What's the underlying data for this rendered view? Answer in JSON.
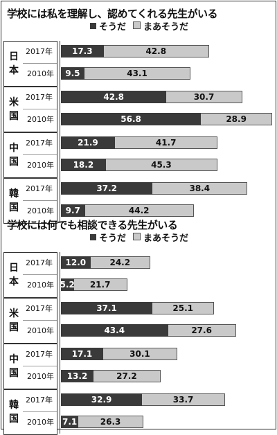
{
  "chart_data": [
    {
      "type": "bar",
      "title": "学校には私を理解し、認めてくれる先生がいる",
      "legend": [
        "そうだ",
        "まあそうだ"
      ],
      "series": [
        {
          "name": "そうだ",
          "color": "#3a3a3a",
          "values": [
            17.3,
            9.5,
            42.8,
            56.8,
            21.9,
            18.2,
            37.2,
            9.7
          ]
        },
        {
          "name": "まあそうだ",
          "color": "#c9c9c9",
          "values": [
            42.8,
            43.1,
            30.7,
            28.9,
            41.7,
            45.3,
            38.4,
            44.2
          ]
        }
      ],
      "groups": [
        {
          "country": "日本",
          "years": [
            "2017年",
            "2010年"
          ]
        },
        {
          "country": "米国",
          "years": [
            "2017年",
            "2010年"
          ]
        },
        {
          "country": "中国",
          "years": [
            "2017年",
            "2010年"
          ]
        },
        {
          "country": "韓国",
          "years": [
            "2017年",
            "2010年"
          ]
        }
      ],
      "stacked": true,
      "orientation": "horizontal",
      "xlim": [
        0,
        100
      ]
    },
    {
      "type": "bar",
      "title": "学校には何でも相談できる先生がいる",
      "legend": [
        "そうだ",
        "まあそうだ"
      ],
      "series": [
        {
          "name": "そうだ",
          "color": "#3a3a3a",
          "values": [
            12.0,
            5.2,
            37.1,
            43.4,
            17.1,
            13.2,
            32.9,
            7.1
          ]
        },
        {
          "name": "まあそうだ",
          "color": "#c9c9c9",
          "values": [
            24.2,
            21.7,
            25.1,
            27.6,
            30.1,
            27.2,
            33.7,
            26.3
          ]
        }
      ],
      "groups": [
        {
          "country": "日本",
          "years": [
            "2017年",
            "2010年"
          ]
        },
        {
          "country": "米国",
          "years": [
            "2017年",
            "2010年"
          ]
        },
        {
          "country": "中国",
          "years": [
            "2017年",
            "2010年"
          ]
        },
        {
          "country": "韓国",
          "years": [
            "2017年",
            "2010年"
          ]
        }
      ],
      "stacked": true,
      "orientation": "horizontal",
      "xlim": [
        0,
        100
      ]
    }
  ]
}
